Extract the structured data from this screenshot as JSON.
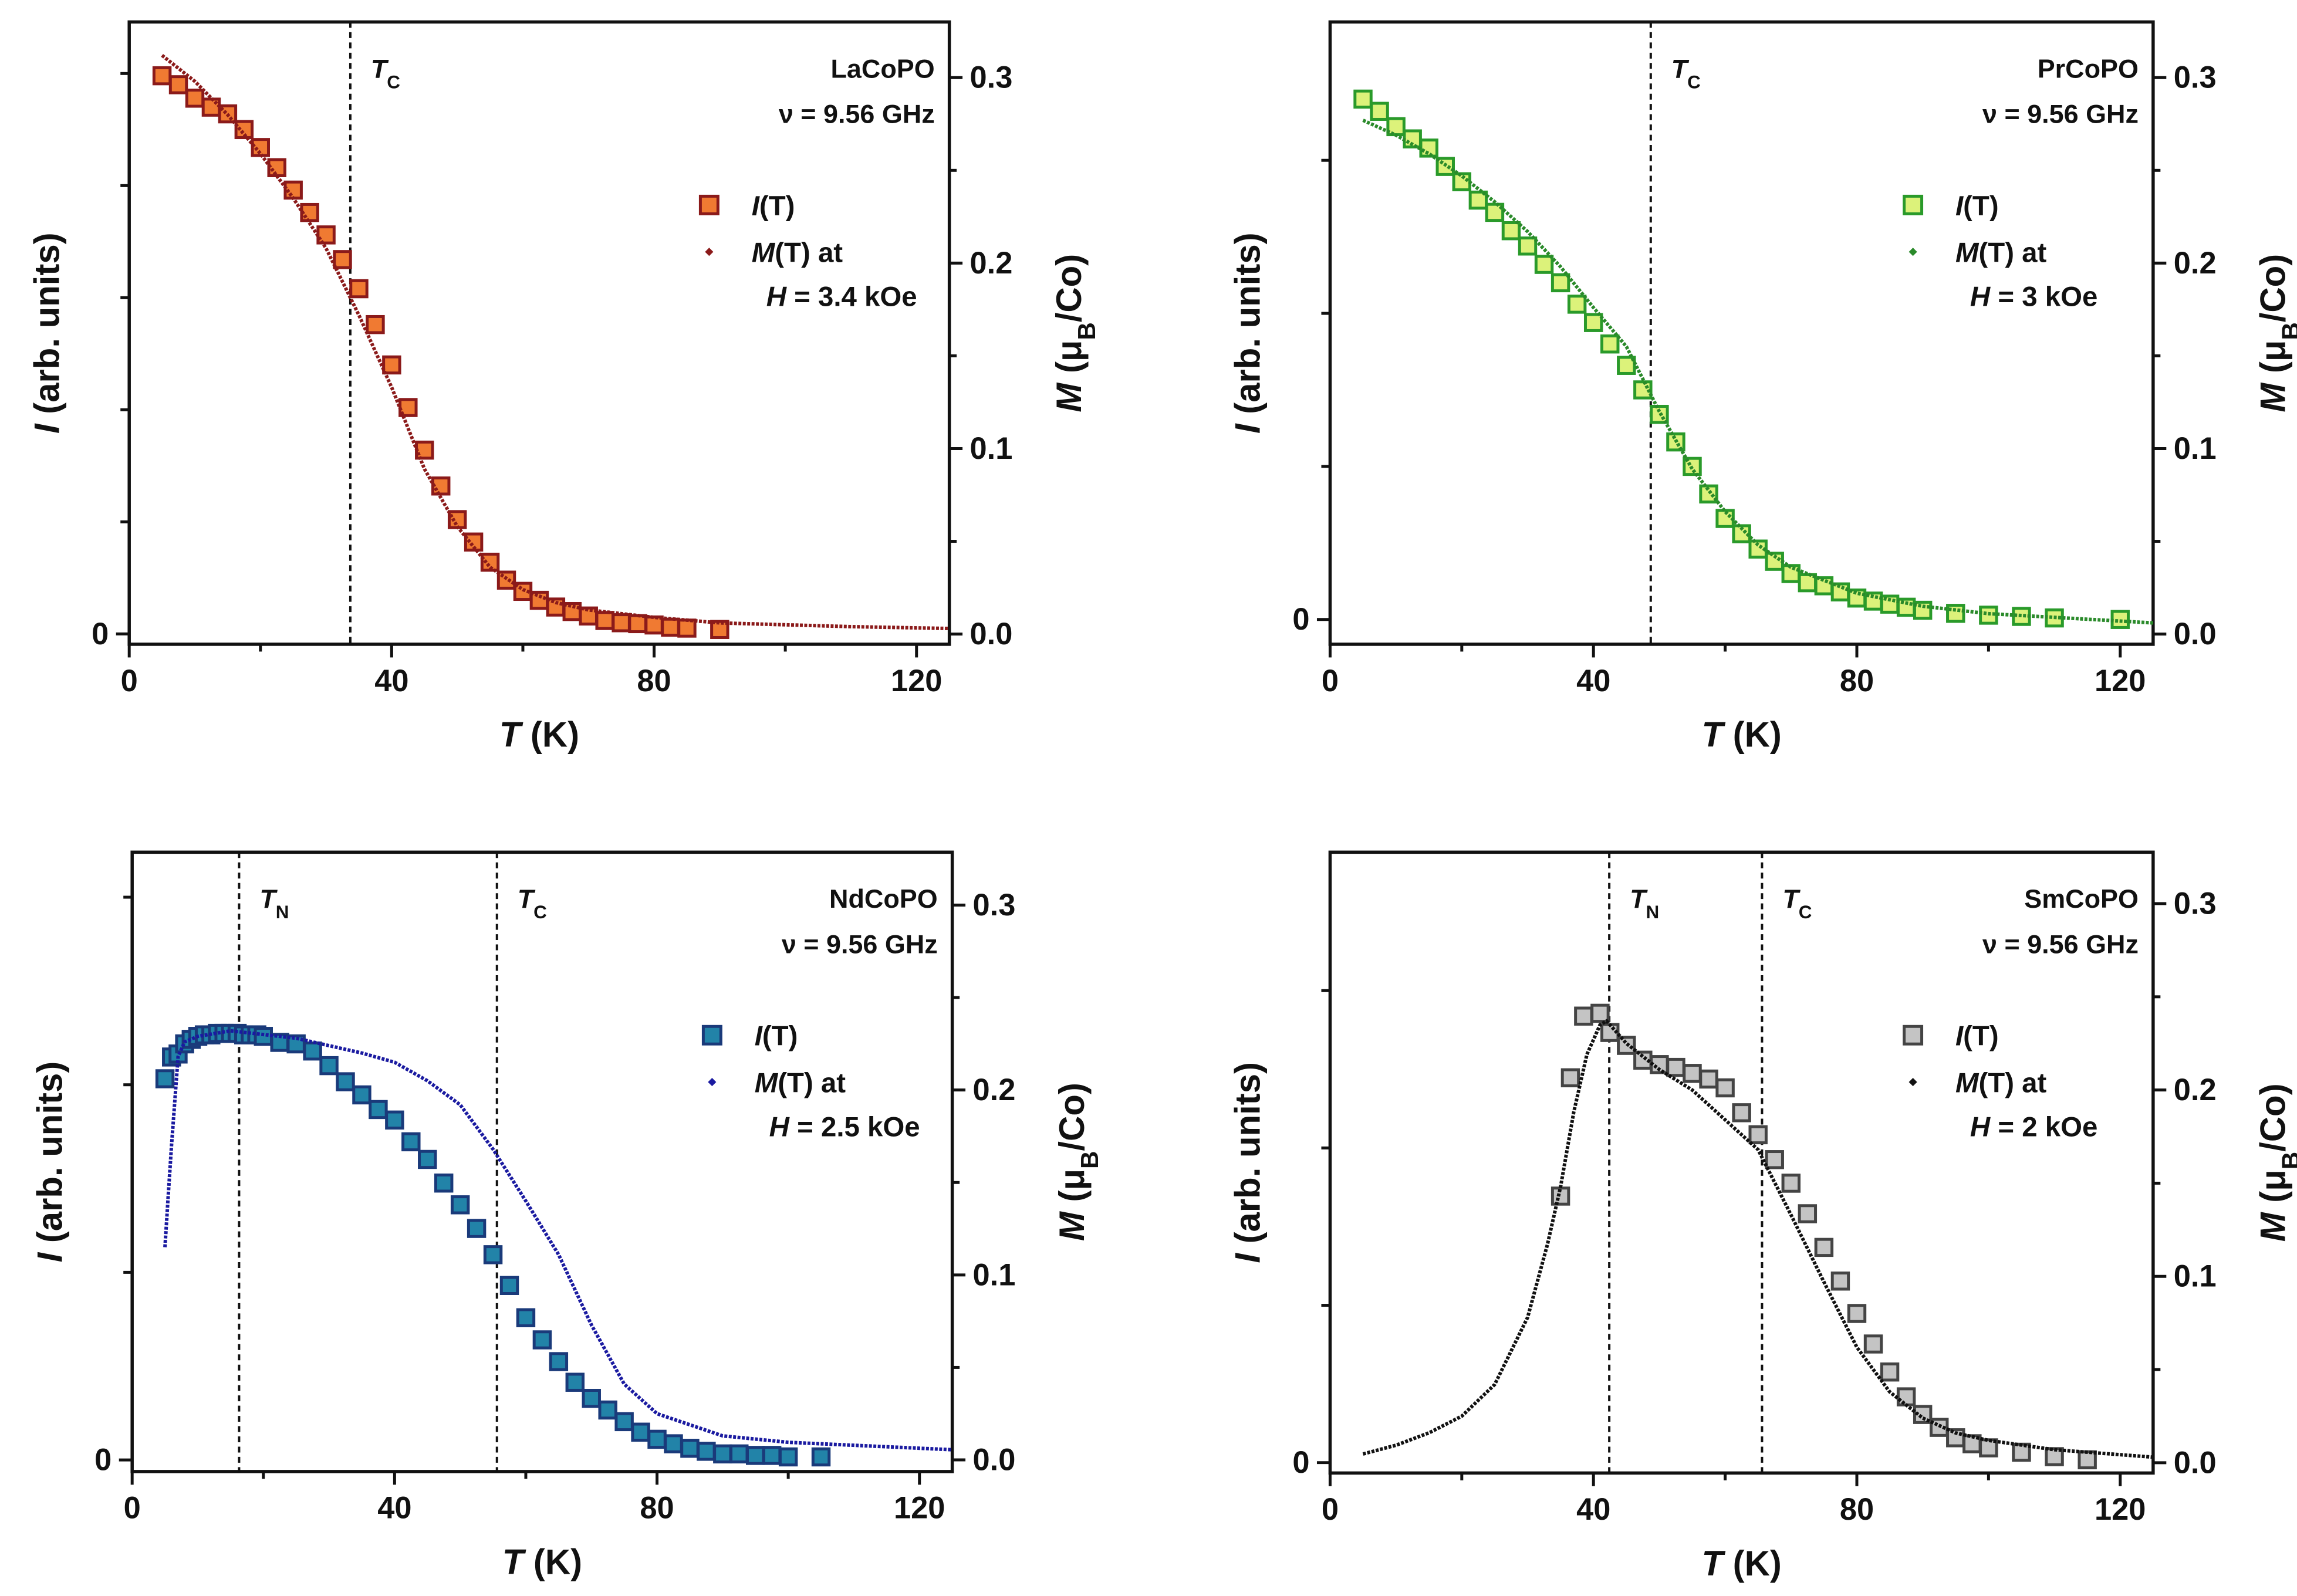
{
  "chart_data": [
    {
      "type": "scatter",
      "title": "LaCoPO",
      "subtitle": "ν = 9.56 GHz",
      "xlabel": [
        {
          "text": "T",
          "italic": true
        },
        {
          "text": " (K)"
        }
      ],
      "ylabel": [
        {
          "text": "I",
          "italic": true
        },
        {
          "text": " (arb. units)"
        }
      ],
      "y2label": [
        {
          "text": "M",
          "italic": true
        },
        {
          "text": " (μ"
        },
        {
          "text": "B",
          "sub": true
        },
        {
          "text": "/Co)"
        }
      ],
      "xlim": [
        0,
        125
      ],
      "xticks": [
        0,
        40,
        80,
        120
      ],
      "xminor": [
        20,
        60,
        100
      ],
      "ylim": [
        -0.046,
        2.73
      ],
      "yticks": [
        0
      ],
      "yminor": [
        0.5,
        1,
        1.5,
        2,
        2.5
      ],
      "y2lim": [
        -0.0055,
        0.33
      ],
      "y2ticks": [
        {
          "value": 0,
          "label": "0.0"
        },
        0.1,
        0.2,
        0.3
      ],
      "y2minor": [
        0.05,
        0.15,
        0.25
      ],
      "markers": [
        {
          "x": 33.7,
          "label": [
            {
              "text": "T",
              "italic": true
            },
            {
              "text": "C",
              "sub": true
            }
          ]
        }
      ],
      "field": [
        {
          "text": "H",
          "italic": true
        },
        {
          "text": " = 3.4 kOe"
        }
      ],
      "series": [
        {
          "name": [
            {
              "text": "I",
              "italic": true
            },
            {
              "text": "(T)"
            }
          ],
          "marker": "square",
          "axis": "y",
          "color": "#f07a32",
          "edgecolor": "#8b1a1a",
          "x": [
            5,
            7.5,
            10,
            12.5,
            15,
            17.5,
            20,
            22.5,
            25,
            27.5,
            30,
            32.5,
            35,
            37.5,
            40,
            42.5,
            45,
            47.5,
            50,
            52.5,
            55,
            57.5,
            60,
            62.5,
            65,
            67.5,
            70,
            72.5,
            75,
            77.5,
            80,
            82.5,
            85,
            90
          ],
          "values": [
            2.49,
            2.45,
            2.39,
            2.35,
            2.32,
            2.25,
            2.17,
            2.08,
            1.98,
            1.88,
            1.78,
            1.67,
            1.54,
            1.38,
            1.2,
            1.01,
            0.82,
            0.66,
            0.51,
            0.41,
            0.32,
            0.24,
            0.19,
            0.15,
            0.12,
            0.1,
            0.08,
            0.06,
            0.05,
            0.046,
            0.04,
            0.03,
            0.026,
            0.02
          ]
        },
        {
          "name": [
            {
              "text": "M",
              "italic": true
            },
            {
              "text": "(T) at"
            }
          ],
          "marker": "line",
          "axis": "y2",
          "color": "#8b1a1a",
          "x": [
            5,
            10,
            15,
            20,
            25,
            30,
            35,
            40,
            45,
            50,
            55,
            60,
            65,
            70,
            80,
            90,
            100,
            110,
            125
          ],
          "values": [
            0.312,
            0.298,
            0.28,
            0.259,
            0.235,
            0.208,
            0.172,
            0.133,
            0.089,
            0.058,
            0.036,
            0.024,
            0.017,
            0.013,
            0.009,
            0.006,
            0.005,
            0.004,
            0.003
          ]
        }
      ]
    },
    {
      "type": "scatter",
      "title": "PrCoPO",
      "subtitle": "ν = 9.56 GHz",
      "xlabel": [
        {
          "text": "T",
          "italic": true
        },
        {
          "text": " (K)"
        }
      ],
      "ylabel": [
        {
          "text": "I",
          "italic": true
        },
        {
          "text": " (arb. units)"
        }
      ],
      "y2label": [
        {
          "text": "M",
          "italic": true
        },
        {
          "text": " (μ"
        },
        {
          "text": "B",
          "sub": true
        },
        {
          "text": "/Co)"
        }
      ],
      "xlim": [
        0,
        125
      ],
      "xticks": [
        0,
        40,
        80,
        120
      ],
      "xminor": [
        20,
        60,
        100
      ],
      "ylim": [
        -0.081,
        1.952
      ],
      "yticks": [
        0
      ],
      "yminor": [
        0.5,
        1,
        1.5
      ],
      "y2lim": [
        -0.0055,
        0.33
      ],
      "y2ticks": [
        {
          "value": 0,
          "label": "0.0"
        },
        0.1,
        0.2,
        0.3
      ],
      "y2minor": [
        0.05,
        0.15,
        0.25
      ],
      "markers": [
        {
          "x": 48.7,
          "label": [
            {
              "text": "T",
              "italic": true
            },
            {
              "text": "C",
              "sub": true
            }
          ]
        }
      ],
      "field": [
        {
          "text": "H",
          "italic": true
        },
        {
          "text": " = 3 kOe"
        }
      ],
      "series": [
        {
          "name": [
            {
              "text": "I",
              "italic": true
            },
            {
              "text": "(T)"
            }
          ],
          "marker": "square",
          "axis": "y",
          "color": "#dcf27a",
          "edgecolor": "#2a9a2a",
          "x": [
            5,
            7.5,
            10,
            12.5,
            15,
            17.5,
            20,
            22.5,
            25,
            27.5,
            30,
            32.5,
            35,
            37.5,
            40,
            42.5,
            45,
            47.5,
            50,
            52.5,
            55,
            57.5,
            60,
            62.5,
            65,
            67.5,
            70,
            72.5,
            75,
            77.5,
            80,
            82.5,
            85,
            87.5,
            90,
            95,
            100,
            105,
            110,
            120
          ],
          "values": [
            1.7,
            1.66,
            1.61,
            1.57,
            1.54,
            1.48,
            1.43,
            1.37,
            1.33,
            1.27,
            1.22,
            1.16,
            1.1,
            1.03,
            0.97,
            0.9,
            0.83,
            0.75,
            0.67,
            0.58,
            0.5,
            0.41,
            0.33,
            0.28,
            0.23,
            0.19,
            0.15,
            0.12,
            0.11,
            0.09,
            0.07,
            0.06,
            0.05,
            0.04,
            0.03,
            0.02,
            0.014,
            0.01,
            0.005,
            0
          ]
        },
        {
          "name": [
            {
              "text": "M",
              "italic": true
            },
            {
              "text": "(T) at"
            }
          ],
          "marker": "line",
          "axis": "y2",
          "color": "#2a8a2a",
          "x": [
            5,
            10,
            15,
            20,
            25,
            30,
            35,
            40,
            45,
            50,
            55,
            60,
            65,
            70,
            80,
            90,
            100,
            110,
            125
          ],
          "values": [
            0.277,
            0.269,
            0.259,
            0.247,
            0.233,
            0.217,
            0.198,
            0.176,
            0.155,
            0.12,
            0.089,
            0.066,
            0.048,
            0.036,
            0.022,
            0.015,
            0.011,
            0.009,
            0.006
          ]
        }
      ]
    },
    {
      "type": "scatter",
      "title": "NdCoPO",
      "subtitle": "ν = 9.56 GHz",
      "xlabel": [
        {
          "text": "T",
          "italic": true
        },
        {
          "text": " (K)"
        }
      ],
      "ylabel": [
        {
          "text": "I",
          "italic": true
        },
        {
          "text": " (arb. units)"
        }
      ],
      "y2label": [
        {
          "text": "M",
          "italic": true
        },
        {
          "text": " (μ"
        },
        {
          "text": "B",
          "sub": true
        },
        {
          "text": "/Co)"
        }
      ],
      "xlim": [
        0,
        125
      ],
      "xticks": [
        0,
        40,
        80,
        120
      ],
      "xminor": [
        20,
        60,
        100
      ],
      "ylim": [
        -0.031,
        1.62
      ],
      "yticks": [
        0
      ],
      "yminor": [
        0.5,
        1,
        1.5
      ],
      "y2lim": [
        -0.0063,
        0.3286
      ],
      "y2ticks": [
        {
          "value": 0,
          "label": "0.0"
        },
        0.1,
        0.2,
        0.3
      ],
      "y2minor": [
        0.05,
        0.15,
        0.25
      ],
      "markers": [
        {
          "x": 16.3,
          "label": [
            {
              "text": "T",
              "italic": true
            },
            {
              "text": "N",
              "sub": true
            }
          ]
        },
        {
          "x": 55.6,
          "label": [
            {
              "text": "T",
              "italic": true
            },
            {
              "text": "C",
              "sub": true
            }
          ]
        }
      ],
      "field": [
        {
          "text": "H",
          "italic": true
        },
        {
          "text": " = 2.5 kOe"
        }
      ],
      "series": [
        {
          "name": [
            {
              "text": "I",
              "italic": true
            },
            {
              "text": "(T)"
            }
          ],
          "marker": "square",
          "axis": "y",
          "color": "#2283a8",
          "edgecolor": "#1a3a7a",
          "x": [
            5,
            6,
            7,
            8,
            9,
            10,
            11,
            12,
            13,
            14,
            15,
            16,
            17,
            18,
            19,
            20,
            22.5,
            25,
            27.5,
            30,
            32.5,
            35,
            37.5,
            40,
            42.5,
            45,
            47.5,
            50,
            52.5,
            55,
            57.5,
            60,
            62.5,
            65,
            67.5,
            70,
            72.5,
            75,
            77.5,
            80,
            82.5,
            85,
            87.5,
            90,
            92.5,
            95,
            97.5,
            100,
            105
          ],
          "values": [
            1.016,
            1.074,
            1.082,
            1.109,
            1.121,
            1.129,
            1.133,
            1.133,
            1.137,
            1.137,
            1.137,
            1.137,
            1.133,
            1.133,
            1.133,
            1.129,
            1.113,
            1.109,
            1.09,
            1.051,
            1.008,
            0.973,
            0.934,
            0.906,
            0.848,
            0.801,
            0.738,
            0.68,
            0.617,
            0.547,
            0.465,
            0.379,
            0.32,
            0.262,
            0.207,
            0.164,
            0.133,
            0.102,
            0.074,
            0.055,
            0.043,
            0.031,
            0.023,
            0.016,
            0.016,
            0.012,
            0.012,
            0.008,
            0.008
          ]
        },
        {
          "name": [
            {
              "text": "M",
              "italic": true
            },
            {
              "text": "(T) at"
            }
          ],
          "marker": "line",
          "axis": "y2",
          "color": "#1a1aa0",
          "x": [
            5,
            5.5,
            6,
            6.5,
            7,
            8,
            10,
            15,
            20,
            25,
            30,
            35,
            40,
            45,
            50,
            55,
            60,
            65,
            70,
            75,
            80,
            90,
            100,
            125
          ],
          "values": [
            0.115,
            0.143,
            0.17,
            0.194,
            0.218,
            0.226,
            0.229,
            0.232,
            0.23,
            0.228,
            0.224,
            0.22,
            0.215,
            0.205,
            0.192,
            0.168,
            0.14,
            0.111,
            0.073,
            0.041,
            0.025,
            0.013,
            0.0095,
            0.0055
          ]
        }
      ]
    },
    {
      "type": "scatter",
      "title": "SmCoPO",
      "subtitle": "ν = 9.56 GHz",
      "xlabel": [
        {
          "text": "T",
          "italic": true
        },
        {
          "text": " (K)"
        }
      ],
      "ylabel": [
        {
          "text": "I",
          "italic": true
        },
        {
          "text": " (arb. units)"
        }
      ],
      "y2label": [
        {
          "text": "M",
          "italic": true
        },
        {
          "text": " (μ"
        },
        {
          "text": "B",
          "sub": true
        },
        {
          "text": "/Co)"
        }
      ],
      "xlim": [
        0,
        125
      ],
      "xticks": [
        0,
        40,
        80,
        120
      ],
      "xminor": [
        20,
        60,
        100
      ],
      "ylim": [
        -0.033,
        1.94
      ],
      "yticks": [
        0
      ],
      "yminor": [
        0.5,
        1,
        1.5
      ],
      "y2lim": [
        -0.0055,
        0.3276
      ],
      "y2ticks": [
        {
          "value": 0,
          "label": "0.0"
        },
        0.1,
        0.2,
        0.3
      ],
      "y2minor": [
        0.05,
        0.15,
        0.25
      ],
      "markers": [
        {
          "x": 42.4,
          "label": [
            {
              "text": "T",
              "italic": true
            },
            {
              "text": "N",
              "sub": true
            }
          ]
        },
        {
          "x": 65.6,
          "label": [
            {
              "text": "T",
              "italic": true
            },
            {
              "text": "C",
              "sub": true
            }
          ]
        }
      ],
      "field": [
        {
          "text": "H",
          "italic": true
        },
        {
          "text": " = 2 kOe"
        }
      ],
      "series": [
        {
          "name": [
            {
              "text": "I",
              "italic": true
            },
            {
              "text": "(T)"
            }
          ],
          "marker": "square",
          "axis": "y",
          "color": "#c4c4c4",
          "edgecolor": "#444444",
          "x": [
            35,
            36.5,
            38.5,
            41,
            42.5,
            45,
            47.5,
            50,
            52.5,
            55,
            57.5,
            60,
            62.5,
            65,
            67.5,
            70,
            72.5,
            75,
            77.5,
            80,
            82.5,
            85,
            87.5,
            90,
            92.5,
            95,
            97.5,
            100,
            105,
            110,
            115
          ],
          "values": [
            0.847,
            1.223,
            1.419,
            1.428,
            1.367,
            1.326,
            1.279,
            1.265,
            1.256,
            1.237,
            1.219,
            1.191,
            1.112,
            1.042,
            0.963,
            0.888,
            0.791,
            0.684,
            0.577,
            0.474,
            0.377,
            0.288,
            0.209,
            0.153,
            0.112,
            0.079,
            0.06,
            0.047,
            0.033,
            0.019,
            0.009
          ]
        },
        {
          "name": [
            {
              "text": "M",
              "italic": true
            },
            {
              "text": "(T) at"
            }
          ],
          "marker": "line",
          "axis": "y2",
          "color": "#111111",
          "x": [
            5,
            10,
            15,
            20,
            25,
            30,
            33,
            35,
            37,
            39,
            41,
            42,
            45,
            50,
            55,
            60,
            65,
            70,
            75,
            80,
            85,
            90,
            95,
            100,
            110,
            125
          ],
          "values": [
            0.0047,
            0.0094,
            0.016,
            0.025,
            0.042,
            0.078,
            0.117,
            0.148,
            0.188,
            0.219,
            0.235,
            0.237,
            0.225,
            0.211,
            0.2,
            0.184,
            0.168,
            0.133,
            0.097,
            0.062,
            0.038,
            0.024,
            0.016,
            0.012,
            0.007,
            0.003
          ]
        }
      ]
    }
  ]
}
